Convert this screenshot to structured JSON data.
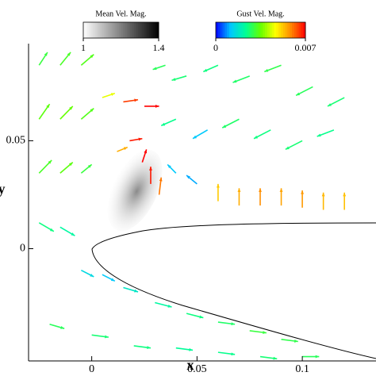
{
  "chart_data": {
    "type": "vector",
    "x_label": "x",
    "y_label": "y",
    "xlim": [
      -0.03,
      0.135
    ],
    "ylim": [
      -0.052,
      0.095
    ],
    "xticks": [
      0,
      0.05,
      0.1
    ],
    "yticks": [
      0,
      0.05
    ],
    "colorbars": [
      {
        "title": "Mean Vel. Mag.",
        "range": [
          1,
          1.4
        ],
        "ticks": [
          1,
          1.4
        ],
        "colors": [
          "#ffffff",
          "#000000"
        ]
      },
      {
        "title": "Gust Vel. Mag.",
        "range": [
          0,
          0.007
        ],
        "ticks": [
          0,
          0.007
        ],
        "colors": [
          "#0000ff",
          "#00c8ff",
          "#00ff96",
          "#64ff00",
          "#ffff00",
          "#ff8c00",
          "#ff0000"
        ]
      }
    ],
    "arrows": {
      "x": [
        -0.025,
        -0.015,
        -0.005,
        -0.025,
        -0.015,
        -0.005,
        -0.025,
        -0.015,
        -0.005,
        0.005,
        0.015,
        0.025,
        0.035,
        0.045,
        0.06,
        0.075,
        0.09,
        0.105,
        0.12,
        0.04,
        0.055,
        0.07,
        0.085,
        0.1,
        0.115,
        0.012,
        0.018,
        0.024,
        0.028,
        0.032,
        0.04,
        0.05,
        0.06,
        0.07,
        0.08,
        0.09,
        0.1,
        0.11,
        0.12,
        -0.025,
        -0.015,
        -0.005,
        0.005,
        0.015,
        0.03,
        0.045,
        0.06,
        0.075,
        0.09,
        -0.02,
        0.0,
        0.02,
        0.04,
        0.06,
        0.08,
        0.1
      ],
      "y": [
        0.085,
        0.085,
        0.085,
        0.06,
        0.06,
        0.06,
        0.035,
        0.035,
        0.035,
        0.07,
        0.068,
        0.066,
        0.085,
        0.08,
        0.085,
        0.08,
        0.085,
        0.075,
        0.07,
        0.06,
        0.055,
        0.06,
        0.055,
        0.05,
        0.055,
        0.045,
        0.05,
        0.04,
        0.03,
        0.025,
        0.035,
        0.03,
        0.022,
        0.02,
        0.02,
        0.02,
        0.019,
        0.018,
        0.018,
        0.012,
        0.01,
        -0.01,
        -0.012,
        -0.018,
        -0.025,
        -0.03,
        -0.034,
        -0.038,
        -0.042,
        -0.035,
        -0.04,
        -0.045,
        -0.046,
        -0.048,
        -0.05,
        -0.05
      ],
      "u": [
        0.004,
        0.005,
        0.006,
        0.005,
        0.006,
        0.006,
        0.006,
        0.006,
        0.005,
        0.006,
        0.007,
        0.007,
        -0.006,
        -0.007,
        -0.007,
        -0.008,
        -0.008,
        -0.008,
        -0.008,
        -0.007,
        -0.007,
        -0.008,
        -0.008,
        -0.008,
        -0.008,
        0.005,
        0.006,
        0.002,
        0.0,
        0.001,
        -0.004,
        -0.005,
        0.0,
        0.0,
        0.0,
        0.0,
        0.0,
        0.0,
        0.0,
        0.007,
        0.007,
        0.006,
        0.006,
        0.007,
        0.008,
        0.008,
        0.008,
        0.008,
        0.008,
        0.007,
        0.008,
        0.008,
        0.008,
        0.008,
        0.008,
        0.008
      ],
      "v": [
        0.006,
        0.006,
        0.005,
        0.007,
        0.006,
        0.005,
        0.006,
        0.005,
        0.004,
        0.002,
        0.001,
        0.0,
        -0.002,
        -0.002,
        -0.003,
        -0.003,
        -0.003,
        -0.004,
        -0.004,
        -0.003,
        -0.004,
        -0.004,
        -0.004,
        -0.004,
        -0.003,
        0.002,
        0.001,
        0.006,
        0.008,
        0.008,
        0.004,
        0.004,
        0.008,
        0.008,
        0.008,
        0.008,
        0.008,
        0.008,
        0.008,
        -0.004,
        -0.004,
        -0.003,
        -0.003,
        -0.002,
        -0.002,
        -0.002,
        -0.001,
        -0.001,
        -0.001,
        -0.002,
        -0.001,
        -0.001,
        -0.001,
        -0.001,
        -0.001,
        0.0
      ],
      "gust": [
        0.003,
        0.0032,
        0.0033,
        0.0034,
        0.0035,
        0.0033,
        0.0032,
        0.0034,
        0.003,
        0.0045,
        0.0065,
        0.007,
        0.0028,
        0.0026,
        0.0025,
        0.0027,
        0.0029,
        0.0028,
        0.0026,
        0.0024,
        0.0012,
        0.0027,
        0.0025,
        0.0026,
        0.0024,
        0.0055,
        0.0068,
        0.007,
        0.0068,
        0.006,
        0.0012,
        0.001,
        0.0052,
        0.0055,
        0.0058,
        0.0056,
        0.0057,
        0.0054,
        0.0053,
        0.0025,
        0.0022,
        0.0015,
        0.0012,
        0.0018,
        0.0022,
        0.0025,
        0.0027,
        0.003,
        0.0029,
        0.0028,
        0.0026,
        0.0025,
        0.0023,
        0.0024,
        0.0026,
        0.0028
      ]
    }
  }
}
